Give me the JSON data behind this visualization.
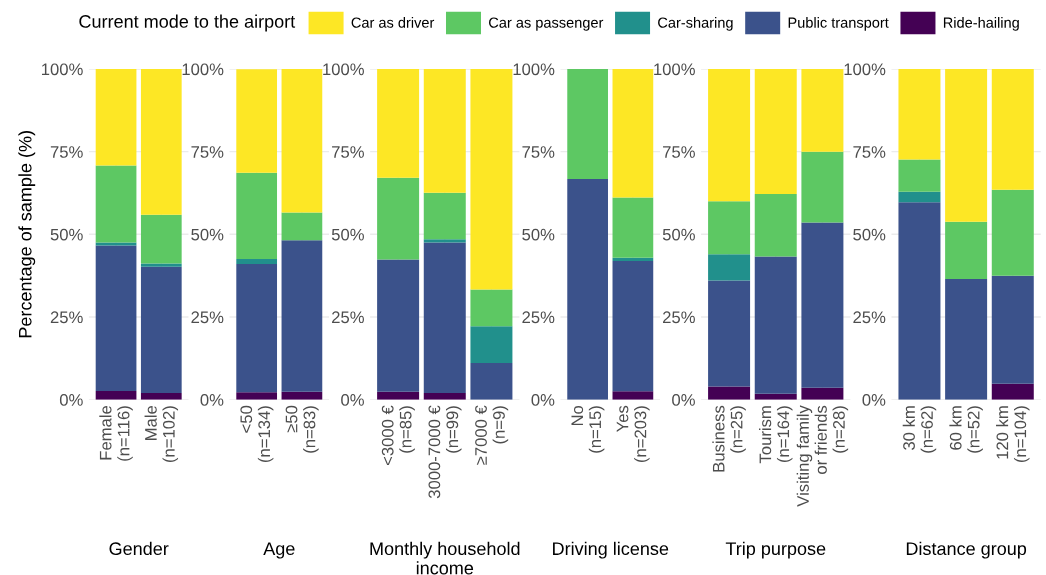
{
  "chart_data": [
    {
      "type": "bar",
      "stacked": true,
      "legend": "top",
      "legend_title": "Current mode to the airport",
      "ylabel": "Percentage of sample (%)",
      "xlabel": "Gender",
      "categories": [
        "Female\n(n=116)",
        "Male\n(n=102)"
      ],
      "ylim": [
        0,
        100
      ],
      "yticks": [
        {
          "value": 0,
          "label": "0%"
        },
        {
          "value": 25,
          "label": "25%"
        },
        {
          "value": 50,
          "label": "50%"
        },
        {
          "value": 75,
          "label": "75%"
        },
        {
          "value": 100,
          "label": "100%"
        }
      ],
      "grid": true,
      "series": [
        {
          "name": "Ride-hailing",
          "color": "#440154",
          "values": [
            2.6,
            2.0
          ]
        },
        {
          "name": "Public transport",
          "color": "#3b528b",
          "values": [
            44.0,
            38.2
          ]
        },
        {
          "name": "Car-sharing",
          "color": "#21908c",
          "values": [
            0.9,
            1.0
          ]
        },
        {
          "name": "Car as passenger",
          "color": "#5dc863",
          "values": [
            23.3,
            14.7
          ]
        },
        {
          "name": "Car as driver",
          "color": "#fde725",
          "values": [
            29.3,
            44.1
          ]
        }
      ]
    },
    {
      "type": "bar",
      "stacked": true,
      "xlabel": "Age",
      "categories": [
        "<50\n(n=134)",
        "≥50\n(n=83)"
      ],
      "ylim": [
        0,
        100
      ],
      "yticks": [
        {
          "value": 0,
          "label": "0%"
        },
        {
          "value": 25,
          "label": "25%"
        },
        {
          "value": 50,
          "label": "50%"
        },
        {
          "value": 75,
          "label": "75%"
        },
        {
          "value": 100,
          "label": "100%"
        }
      ],
      "grid": true,
      "series": [
        {
          "color": "#440154",
          "values": [
            2.2,
            2.4
          ]
        },
        {
          "color": "#3b528b",
          "values": [
            38.8,
            45.8
          ]
        },
        {
          "color": "#21908c",
          "values": [
            1.5,
            0
          ]
        },
        {
          "color": "#5dc863",
          "values": [
            26.1,
            8.4
          ]
        },
        {
          "color": "#fde725",
          "values": [
            31.3,
            43.4
          ]
        }
      ]
    },
    {
      "type": "bar",
      "stacked": true,
      "xlabel": "Monthly household\nincome",
      "categories": [
        "<3000 €\n(n=85)",
        "3000-7000 €\n(n=99)",
        "≥7000 €\n(n=9)"
      ],
      "ylim": [
        0,
        100
      ],
      "yticks": [
        {
          "value": 0,
          "label": "0%"
        },
        {
          "value": 25,
          "label": "25%"
        },
        {
          "value": 50,
          "label": "50%"
        },
        {
          "value": 75,
          "label": "75%"
        },
        {
          "value": 100,
          "label": "100%"
        }
      ],
      "grid": true,
      "series": [
        {
          "color": "#440154",
          "values": [
            2.4,
            2.0,
            0
          ]
        },
        {
          "color": "#3b528b",
          "values": [
            40.0,
            45.5,
            11.1
          ]
        },
        {
          "color": "#21908c",
          "values": [
            0,
            1.0,
            11.1
          ]
        },
        {
          "color": "#5dc863",
          "values": [
            24.7,
            14.1,
            11.1
          ]
        },
        {
          "color": "#fde725",
          "values": [
            32.9,
            37.4,
            66.7
          ]
        }
      ]
    },
    {
      "type": "bar",
      "stacked": true,
      "xlabel": "Driving license",
      "categories": [
        "No\n(n=15)",
        "Yes\n(n=203)"
      ],
      "ylim": [
        0,
        100
      ],
      "yticks": [
        {
          "value": 0,
          "label": "0%"
        },
        {
          "value": 25,
          "label": "25%"
        },
        {
          "value": 50,
          "label": "50%"
        },
        {
          "value": 75,
          "label": "75%"
        },
        {
          "value": 100,
          "label": "100%"
        }
      ],
      "grid": true,
      "series": [
        {
          "color": "#440154",
          "values": [
            0,
            2.5
          ]
        },
        {
          "color": "#3b528b",
          "values": [
            66.7,
            39.4
          ]
        },
        {
          "color": "#21908c",
          "values": [
            0,
            1.0
          ]
        },
        {
          "color": "#5dc863",
          "values": [
            33.3,
            18.2
          ]
        },
        {
          "color": "#fde725",
          "values": [
            0,
            38.9
          ]
        }
      ]
    },
    {
      "type": "bar",
      "stacked": true,
      "xlabel": "Trip purpose",
      "categories": [
        "Business\n(n=25)",
        "Tourism\n(n=164)",
        "Visiting family\nor friends\n(n=28)"
      ],
      "ylim": [
        0,
        100
      ],
      "yticks": [
        {
          "value": 0,
          "label": "0%"
        },
        {
          "value": 25,
          "label": "25%"
        },
        {
          "value": 50,
          "label": "50%"
        },
        {
          "value": 75,
          "label": "75%"
        },
        {
          "value": 100,
          "label": "100%"
        }
      ],
      "grid": true,
      "series": [
        {
          "color": "#440154",
          "values": [
            4.0,
            1.8,
            3.6
          ]
        },
        {
          "color": "#3b528b",
          "values": [
            32.0,
            41.5,
            50.0
          ]
        },
        {
          "color": "#21908c",
          "values": [
            8.0,
            0,
            0
          ]
        },
        {
          "color": "#5dc863",
          "values": [
            16.0,
            18.9,
            21.4
          ]
        },
        {
          "color": "#fde725",
          "values": [
            40.0,
            37.8,
            25.0
          ]
        }
      ]
    },
    {
      "type": "bar",
      "stacked": true,
      "xlabel": "Distance group",
      "categories": [
        "30 km\n(n=62)",
        "60 km\n(n=52)",
        "120 km\n(n=104)"
      ],
      "ylim": [
        0,
        100
      ],
      "yticks": [
        {
          "value": 0,
          "label": "0%"
        },
        {
          "value": 25,
          "label": "25%"
        },
        {
          "value": 50,
          "label": "50%"
        },
        {
          "value": 75,
          "label": "75%"
        },
        {
          "value": 100,
          "label": "100%"
        }
      ],
      "grid": true,
      "series": [
        {
          "color": "#440154",
          "values": [
            0,
            0,
            4.8
          ]
        },
        {
          "color": "#3b528b",
          "values": [
            59.7,
            36.5,
            32.7
          ]
        },
        {
          "color": "#21908c",
          "values": [
            3.2,
            0,
            0
          ]
        },
        {
          "color": "#5dc863",
          "values": [
            9.7,
            17.3,
            26.0
          ]
        },
        {
          "color": "#fde725",
          "values": [
            27.4,
            46.2,
            36.5
          ]
        }
      ]
    }
  ]
}
